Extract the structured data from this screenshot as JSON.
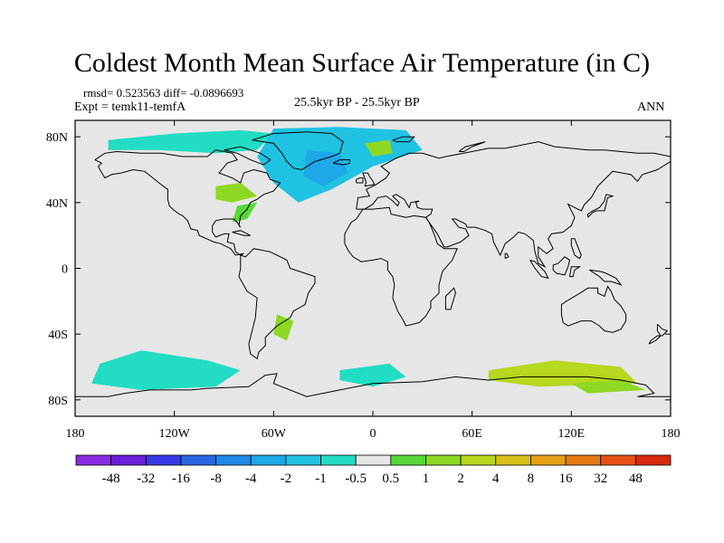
{
  "title": "Coldest Month Mean Surface Air Temperature (in C)",
  "stats_line": "rmsd= 0.523563 diff= -0.0896693",
  "experiment_line": "Expt = temk11-temfA",
  "period_label": "25.5kyr BP - 25.5kyr BP",
  "season_label": "ANN",
  "map": {
    "projection": "cylindrical-equidistant",
    "lon_range": [
      -180,
      180
    ],
    "lat_range": [
      -90,
      90
    ],
    "background_color": "#e6e6e6",
    "coastline_color": "#000000",
    "x_ticks": [
      {
        "lon": -180,
        "label": "180"
      },
      {
        "lon": -120,
        "label": "120W"
      },
      {
        "lon": -60,
        "label": "60W"
      },
      {
        "lon": 0,
        "label": "0"
      },
      {
        "lon": 60,
        "label": "60E"
      },
      {
        "lon": 120,
        "label": "120E"
      },
      {
        "lon": 180,
        "label": "180"
      }
    ],
    "y_ticks": [
      {
        "lat": 80,
        "label": "80N"
      },
      {
        "lat": 40,
        "label": "40N"
      },
      {
        "lat": 0,
        "label": "0"
      },
      {
        "lat": -40,
        "label": "40S"
      },
      {
        "lat": -80,
        "label": "80S"
      }
    ]
  },
  "colorbar": {
    "colors": [
      "#8a2be2",
      "#6a1fd8",
      "#3a3ae6",
      "#2a66e0",
      "#1e88e8",
      "#1ea8e8",
      "#20c2e2",
      "#22dcc4",
      "#e6e6e6",
      "#58d838",
      "#8ed824",
      "#b6d81e",
      "#d8c018",
      "#e6a014",
      "#e67814",
      "#e65014",
      "#d82a0e"
    ],
    "labels": [
      "-48",
      "-32",
      "-16",
      "-8",
      "-4",
      "-2",
      "-1",
      "-0.5",
      "0.5",
      "1",
      "2",
      "4",
      "8",
      "16",
      "32",
      "48"
    ]
  },
  "anomaly_regions": [
    {
      "name": "arctic-north-america",
      "color": "#22dcc4",
      "points": [
        [
          -160,
          78
        ],
        [
          -120,
          82
        ],
        [
          -80,
          84
        ],
        [
          -60,
          82
        ],
        [
          -70,
          72
        ],
        [
          -95,
          70
        ],
        [
          -130,
          72
        ],
        [
          -160,
          72
        ]
      ]
    },
    {
      "name": "north-atlantic-cooling",
      "color": "#20c2e2",
      "points": [
        [
          -60,
          85
        ],
        [
          -20,
          86
        ],
        [
          20,
          84
        ],
        [
          30,
          72
        ],
        [
          0,
          62
        ],
        [
          -25,
          48
        ],
        [
          -45,
          40
        ],
        [
          -60,
          52
        ],
        [
          -70,
          68
        ]
      ]
    },
    {
      "name": "north-atlantic-core",
      "color": "#1ea8e8",
      "points": [
        [
          -40,
          72
        ],
        [
          -20,
          70
        ],
        [
          -15,
          58
        ],
        [
          -30,
          50
        ],
        [
          -42,
          56
        ]
      ]
    },
    {
      "name": "europe-arctic-warming",
      "color": "#8ed824",
      "points": [
        [
          -5,
          76
        ],
        [
          10,
          78
        ],
        [
          12,
          70
        ],
        [
          0,
          68
        ]
      ]
    },
    {
      "name": "north-america-warming",
      "color": "#8ed824",
      "points": [
        [
          -95,
          50
        ],
        [
          -80,
          52
        ],
        [
          -70,
          44
        ],
        [
          -85,
          40
        ],
        [
          -95,
          42
        ]
      ]
    },
    {
      "name": "eastern-north-america-warming",
      "color": "#58d838",
      "points": [
        [
          -82,
          38
        ],
        [
          -70,
          40
        ],
        [
          -76,
          30
        ],
        [
          -85,
          28
        ]
      ]
    },
    {
      "name": "southern-ocean-pacific",
      "color": "#22dcc4",
      "points": [
        [
          -165,
          -58
        ],
        [
          -140,
          -50
        ],
        [
          -100,
          -56
        ],
        [
          -80,
          -62
        ],
        [
          -95,
          -72
        ],
        [
          -140,
          -74
        ],
        [
          -170,
          -70
        ]
      ]
    },
    {
      "name": "southern-ocean-atlantic",
      "color": "#22dcc4",
      "points": [
        [
          -20,
          -62
        ],
        [
          10,
          -58
        ],
        [
          20,
          -66
        ],
        [
          0,
          -72
        ],
        [
          -20,
          -68
        ]
      ]
    },
    {
      "name": "southern-ocean-indian-warming",
      "color": "#b6d81e",
      "points": [
        [
          70,
          -62
        ],
        [
          110,
          -56
        ],
        [
          150,
          -60
        ],
        [
          160,
          -70
        ],
        [
          100,
          -72
        ],
        [
          70,
          -68
        ]
      ]
    },
    {
      "name": "antarctic-warming-east",
      "color": "#8ed824",
      "points": [
        [
          120,
          -70
        ],
        [
          150,
          -68
        ],
        [
          165,
          -74
        ],
        [
          130,
          -76
        ]
      ]
    },
    {
      "name": "south-america-warming",
      "color": "#8ed824",
      "points": [
        [
          -58,
          -28
        ],
        [
          -48,
          -32
        ],
        [
          -52,
          -44
        ],
        [
          -60,
          -40
        ]
      ]
    }
  ]
}
